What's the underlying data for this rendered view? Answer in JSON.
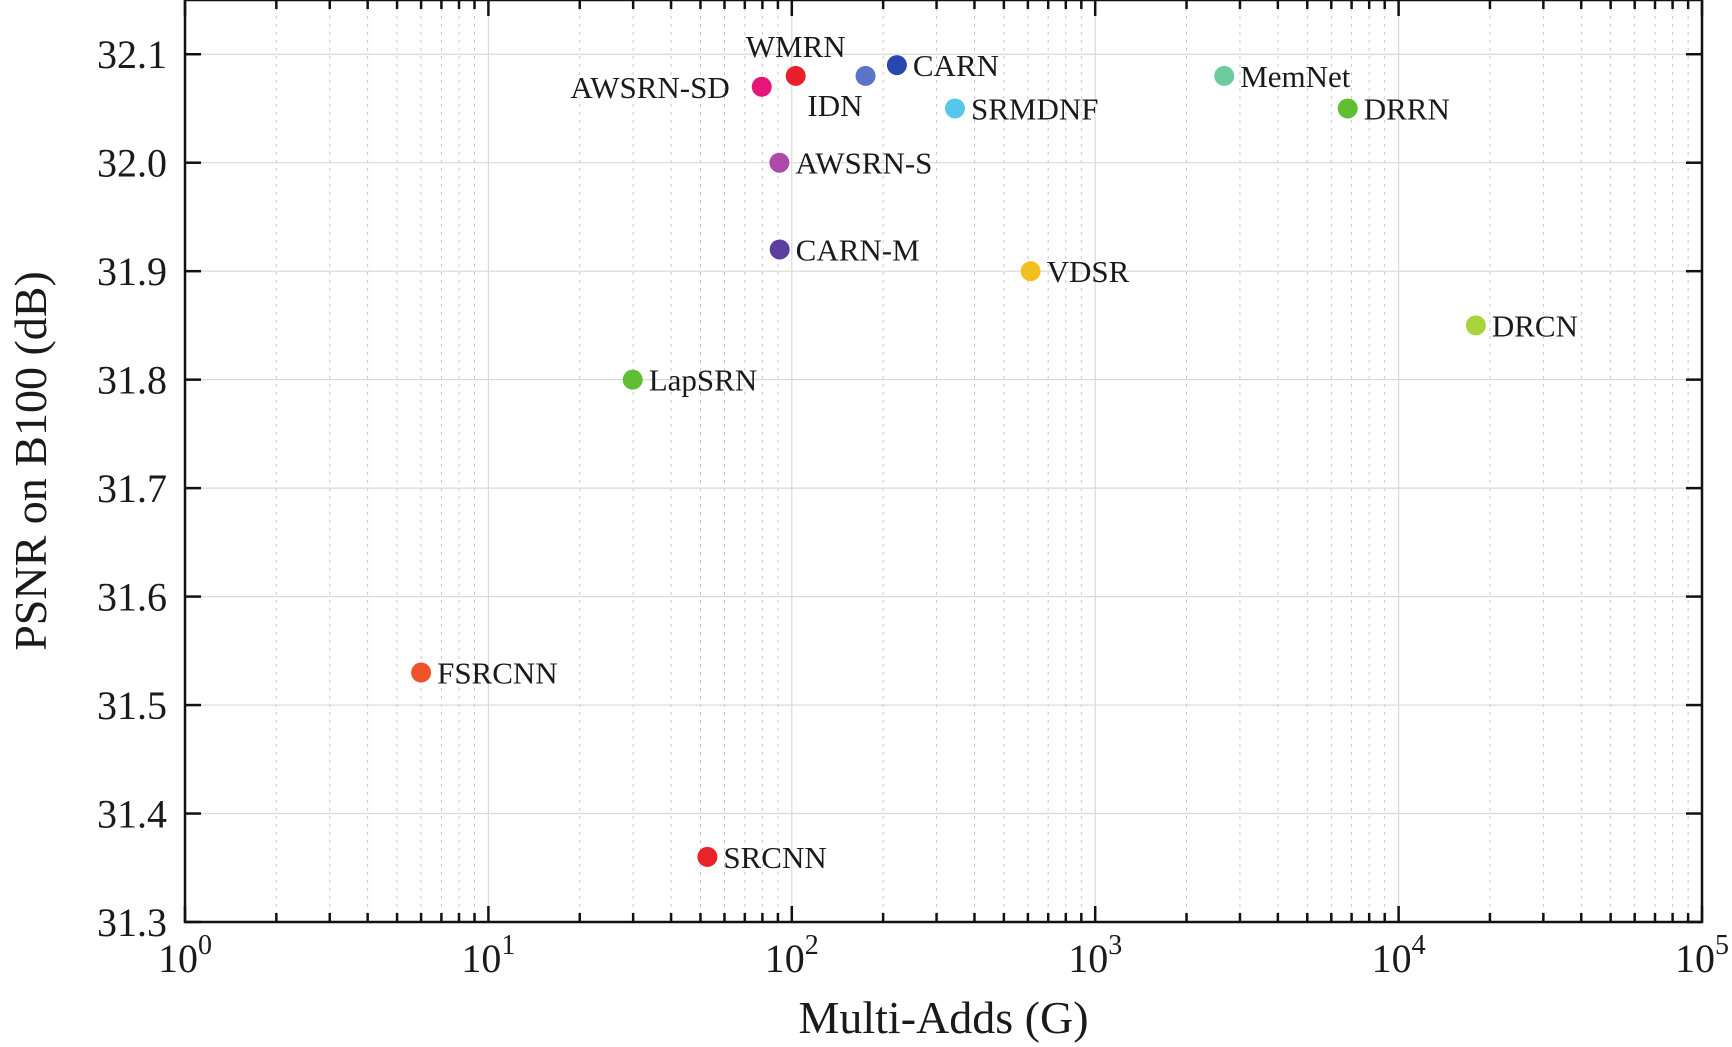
{
  "chart_data": {
    "type": "scatter",
    "title": "",
    "xlabel": "Multi-Adds (G)",
    "ylabel": "PSNR on B100 (dB)",
    "xscale": "log",
    "xlim": [
      1,
      100000
    ],
    "ylim": [
      31.3,
      32.15
    ],
    "grid": true,
    "x_ticks": [
      {
        "base": "10",
        "exp": "0",
        "value": 1
      },
      {
        "base": "10",
        "exp": "1",
        "value": 10
      },
      {
        "base": "10",
        "exp": "2",
        "value": 100
      },
      {
        "base": "10",
        "exp": "3",
        "value": 1000
      },
      {
        "base": "10",
        "exp": "4",
        "value": 10000
      },
      {
        "base": "10",
        "exp": "5",
        "value": 100000
      }
    ],
    "y_ticks": [
      "31.3",
      "31.4",
      "31.5",
      "31.6",
      "31.7",
      "31.8",
      "31.9",
      "32.0",
      "32.1"
    ],
    "points": [
      {
        "label": "SRCNN",
        "x": 52.7,
        "y": 31.36,
        "color": "#e8232a",
        "label_pos": "right"
      },
      {
        "label": "FSRCNN",
        "x": 6.0,
        "y": 31.53,
        "color": "#f0532a",
        "label_pos": "right"
      },
      {
        "label": "LapSRN",
        "x": 29.9,
        "y": 31.8,
        "color": "#5fbe32",
        "label_pos": "right"
      },
      {
        "label": "CARN-M",
        "x": 91.2,
        "y": 31.92,
        "color": "#5c3ea0",
        "label_pos": "right"
      },
      {
        "label": "AWSRN-S",
        "x": 91.0,
        "y": 32.0,
        "color": "#b04aa8",
        "label_pos": "right"
      },
      {
        "label": "AWSRN-SD",
        "x": 79.6,
        "y": 32.07,
        "color": "#e6157a",
        "label_pos": "left"
      },
      {
        "label": "WMRN",
        "x": 103.0,
        "y": 32.08,
        "color": "#ea1f2c",
        "label_pos": "above-left"
      },
      {
        "label": "IDN",
        "x": 175.0,
        "y": 32.08,
        "color": "#5b74c8",
        "label_pos": "below-left"
      },
      {
        "label": "CARN",
        "x": 222.0,
        "y": 32.09,
        "color": "#2848b0",
        "label_pos": "right"
      },
      {
        "label": "SRMDNF",
        "x": 345.0,
        "y": 32.05,
        "color": "#56c6ec",
        "label_pos": "right"
      },
      {
        "label": "VDSR",
        "x": 612.6,
        "y": 31.9,
        "color": "#f2c01e",
        "label_pos": "right"
      },
      {
        "label": "MemNet",
        "x": 2662.4,
        "y": 32.08,
        "color": "#6ccca0",
        "label_pos": "right"
      },
      {
        "label": "DRRN",
        "x": 6796.9,
        "y": 32.05,
        "color": "#5fbe32",
        "label_pos": "right"
      },
      {
        "label": "DRCN",
        "x": 17974.3,
        "y": 31.85,
        "color": "#a8d43a",
        "label_pos": "right"
      }
    ]
  }
}
